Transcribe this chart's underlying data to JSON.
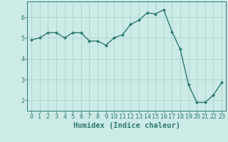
{
  "x": [
    0,
    1,
    2,
    3,
    4,
    5,
    6,
    7,
    8,
    9,
    10,
    11,
    12,
    13,
    14,
    15,
    16,
    17,
    18,
    19,
    20,
    21,
    22,
    23
  ],
  "y": [
    4.9,
    5.0,
    5.25,
    5.25,
    5.0,
    5.25,
    5.25,
    4.85,
    4.85,
    4.65,
    5.0,
    5.15,
    5.65,
    5.85,
    6.2,
    6.15,
    6.35,
    5.3,
    4.45,
    2.75,
    1.9,
    1.9,
    2.25,
    2.85
  ],
  "line_color": "#2d7a6e",
  "marker": "D",
  "marker_size": 2.0,
  "bg_color": "#cceae6",
  "grid_color": "#aad4ce",
  "axis_color": "#2d7a6e",
  "xlabel": "Humidex (Indice chaleur)",
  "ylim": [
    1.5,
    6.75
  ],
  "yticks": [
    2,
    3,
    4,
    5,
    6
  ],
  "xticks": [
    0,
    1,
    2,
    3,
    4,
    5,
    6,
    7,
    8,
    9,
    10,
    11,
    12,
    13,
    14,
    15,
    16,
    17,
    18,
    19,
    20,
    21,
    22,
    23
  ],
  "xlabel_fontsize": 7.5,
  "tick_fontsize": 6.0,
  "linewidth": 1.0
}
